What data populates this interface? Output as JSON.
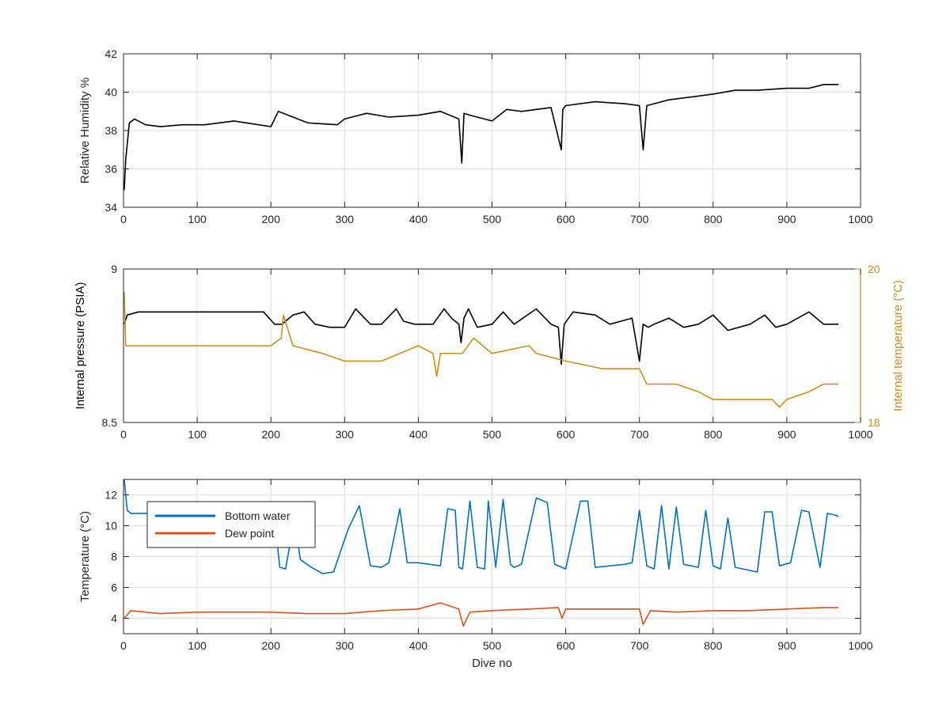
{
  "chart_data": [
    {
      "type": "line",
      "xlabel": "",
      "ylabel": "Relative Humidity %",
      "xlim": [
        0,
        1000
      ],
      "ylim": [
        34,
        42
      ],
      "xticks": [
        "0",
        "100",
        "200",
        "300",
        "400",
        "500",
        "600",
        "700",
        "800",
        "900",
        "1000"
      ],
      "yticks": [
        "34",
        "36",
        "38",
        "40",
        "42"
      ],
      "grid": true,
      "colors": {
        "line": "#000000"
      },
      "series": [
        {
          "x": [
            1,
            3,
            8,
            15,
            30,
            50,
            80,
            110,
            150,
            200,
            210,
            250,
            290,
            300,
            330,
            360,
            400,
            430,
            455,
            459,
            462,
            470,
            500,
            520,
            540,
            580,
            594,
            596,
            600,
            640,
            680,
            700,
            705,
            710,
            740,
            780,
            800,
            830,
            860,
            900,
            930,
            950,
            970
          ],
          "y": [
            34.9,
            36.5,
            38.4,
            38.6,
            38.3,
            38.2,
            38.3,
            38.3,
            38.5,
            38.2,
            39.0,
            38.4,
            38.3,
            38.6,
            38.9,
            38.7,
            38.8,
            39.0,
            38.6,
            36.3,
            38.9,
            38.8,
            38.5,
            39.1,
            39.0,
            39.2,
            37.0,
            39.1,
            39.3,
            39.5,
            39.4,
            39.3,
            37.0,
            39.3,
            39.6,
            39.8,
            39.9,
            40.1,
            40.1,
            40.2,
            40.2,
            40.4,
            40.4
          ]
        }
      ]
    },
    {
      "type": "line",
      "xlabel": "",
      "ylabel": "Internal pressure (PSIA)",
      "y2label": "Internal temperature (°C)",
      "xlim": [
        0,
        1000
      ],
      "ylim": [
        8.5,
        9
      ],
      "y2lim": [
        18,
        20
      ],
      "xticks": [
        "0",
        "100",
        "200",
        "300",
        "400",
        "500",
        "600",
        "700",
        "800",
        "900",
        "1000"
      ],
      "yticks": [
        "8.5",
        "9"
      ],
      "y2ticks": [
        "18",
        "20"
      ],
      "grid": true,
      "colors": {
        "left": "#000000",
        "right": "#c8901a"
      },
      "series": [
        {
          "axis": "left",
          "x": [
            1,
            5,
            20,
            50,
            100,
            150,
            190,
            205,
            215,
            230,
            245,
            260,
            280,
            300,
            315,
            335,
            350,
            370,
            380,
            395,
            420,
            435,
            445,
            455,
            458,
            462,
            468,
            480,
            500,
            515,
            530,
            560,
            580,
            590,
            594,
            598,
            610,
            640,
            660,
            690,
            700,
            705,
            712,
            720,
            740,
            760,
            780,
            800,
            820,
            850,
            870,
            885,
            900,
            930,
            950,
            970
          ],
          "y": [
            8.82,
            8.85,
            8.86,
            8.86,
            8.86,
            8.86,
            8.86,
            8.82,
            8.82,
            8.85,
            8.86,
            8.82,
            8.81,
            8.81,
            8.87,
            8.82,
            8.82,
            8.87,
            8.83,
            8.82,
            8.82,
            8.87,
            8.84,
            8.82,
            8.76,
            8.84,
            8.87,
            8.81,
            8.82,
            8.86,
            8.82,
            8.87,
            8.82,
            8.81,
            8.69,
            8.82,
            8.86,
            8.85,
            8.82,
            8.84,
            8.7,
            8.82,
            8.81,
            8.82,
            8.84,
            8.81,
            8.82,
            8.85,
            8.8,
            8.82,
            8.85,
            8.81,
            8.82,
            8.86,
            8.82,
            8.82
          ]
        },
        {
          "axis": "right",
          "x": [
            1,
            3,
            10,
            50,
            100,
            150,
            200,
            214,
            217,
            230,
            270,
            300,
            350,
            400,
            420,
            425,
            430,
            460,
            475,
            500,
            550,
            560,
            600,
            650,
            700,
            710,
            750,
            780,
            800,
            840,
            880,
            890,
            900,
            930,
            950,
            970
          ],
          "y": [
            19.7,
            19.0,
            19.0,
            19.0,
            19.0,
            19.0,
            19.0,
            19.1,
            19.4,
            19.0,
            18.9,
            18.8,
            18.8,
            19.0,
            18.9,
            18.6,
            18.9,
            18.9,
            19.1,
            18.9,
            19.0,
            18.9,
            18.8,
            18.7,
            18.7,
            18.5,
            18.5,
            18.4,
            18.3,
            18.3,
            18.3,
            18.2,
            18.3,
            18.4,
            18.5,
            18.5
          ]
        }
      ]
    },
    {
      "type": "line",
      "xlabel": "Dive no",
      "ylabel": "Temperature (°C)",
      "xlim": [
        0,
        1000
      ],
      "ylim": [
        3,
        13
      ],
      "xticks": [
        "0",
        "100",
        "200",
        "300",
        "400",
        "500",
        "600",
        "700",
        "800",
        "900",
        "1000"
      ],
      "yticks": [
        "4",
        "6",
        "8",
        "10",
        "12"
      ],
      "grid": true,
      "legend": "top-left",
      "series": [
        {
          "name": "Bottom water",
          "color": "#0072bd",
          "x": [
            1,
            5,
            10,
            200,
            205,
            212,
            220,
            232,
            240,
            255,
            270,
            285,
            305,
            320,
            335,
            350,
            360,
            375,
            385,
            400,
            430,
            440,
            450,
            455,
            460,
            470,
            480,
            490,
            495,
            505,
            515,
            525,
            530,
            540,
            560,
            575,
            585,
            600,
            620,
            630,
            640,
            680,
            690,
            700,
            710,
            720,
            730,
            740,
            750,
            760,
            770,
            780,
            790,
            800,
            810,
            820,
            830,
            850,
            860,
            870,
            880,
            890,
            905,
            920,
            930,
            945,
            955,
            965,
            970
          ],
          "y": [
            13.0,
            11.0,
            10.8,
            10.8,
            10.5,
            7.3,
            7.2,
            10.5,
            7.8,
            7.3,
            6.9,
            7.0,
            9.8,
            11.3,
            7.4,
            7.3,
            7.6,
            11.1,
            7.6,
            7.6,
            7.4,
            11.1,
            11.0,
            7.3,
            7.2,
            11.6,
            7.3,
            7.2,
            11.6,
            7.3,
            11.7,
            7.5,
            7.3,
            7.5,
            11.8,
            11.5,
            7.5,
            7.2,
            11.6,
            11.6,
            7.3,
            7.5,
            7.6,
            11.0,
            7.4,
            7.2,
            11.3,
            7.2,
            11.2,
            7.5,
            7.4,
            7.3,
            11.0,
            7.4,
            7.2,
            10.5,
            7.3,
            7.1,
            7.0,
            10.9,
            10.9,
            7.4,
            7.6,
            11.0,
            10.9,
            7.3,
            10.8,
            10.7,
            10.6
          ]
        },
        {
          "name": "Dew point",
          "color": "#d95319",
          "x": [
            1,
            10,
            50,
            100,
            150,
            200,
            250,
            300,
            350,
            400,
            430,
            455,
            461,
            470,
            500,
            550,
            590,
            595,
            600,
            650,
            700,
            705,
            715,
            750,
            800,
            850,
            900,
            950,
            970
          ],
          "y": [
            4.0,
            4.5,
            4.3,
            4.4,
            4.4,
            4.4,
            4.3,
            4.3,
            4.5,
            4.6,
            5.0,
            4.6,
            3.5,
            4.4,
            4.5,
            4.6,
            4.7,
            4.0,
            4.6,
            4.6,
            4.6,
            3.6,
            4.5,
            4.4,
            4.5,
            4.5,
            4.6,
            4.7,
            4.7
          ]
        }
      ]
    }
  ]
}
